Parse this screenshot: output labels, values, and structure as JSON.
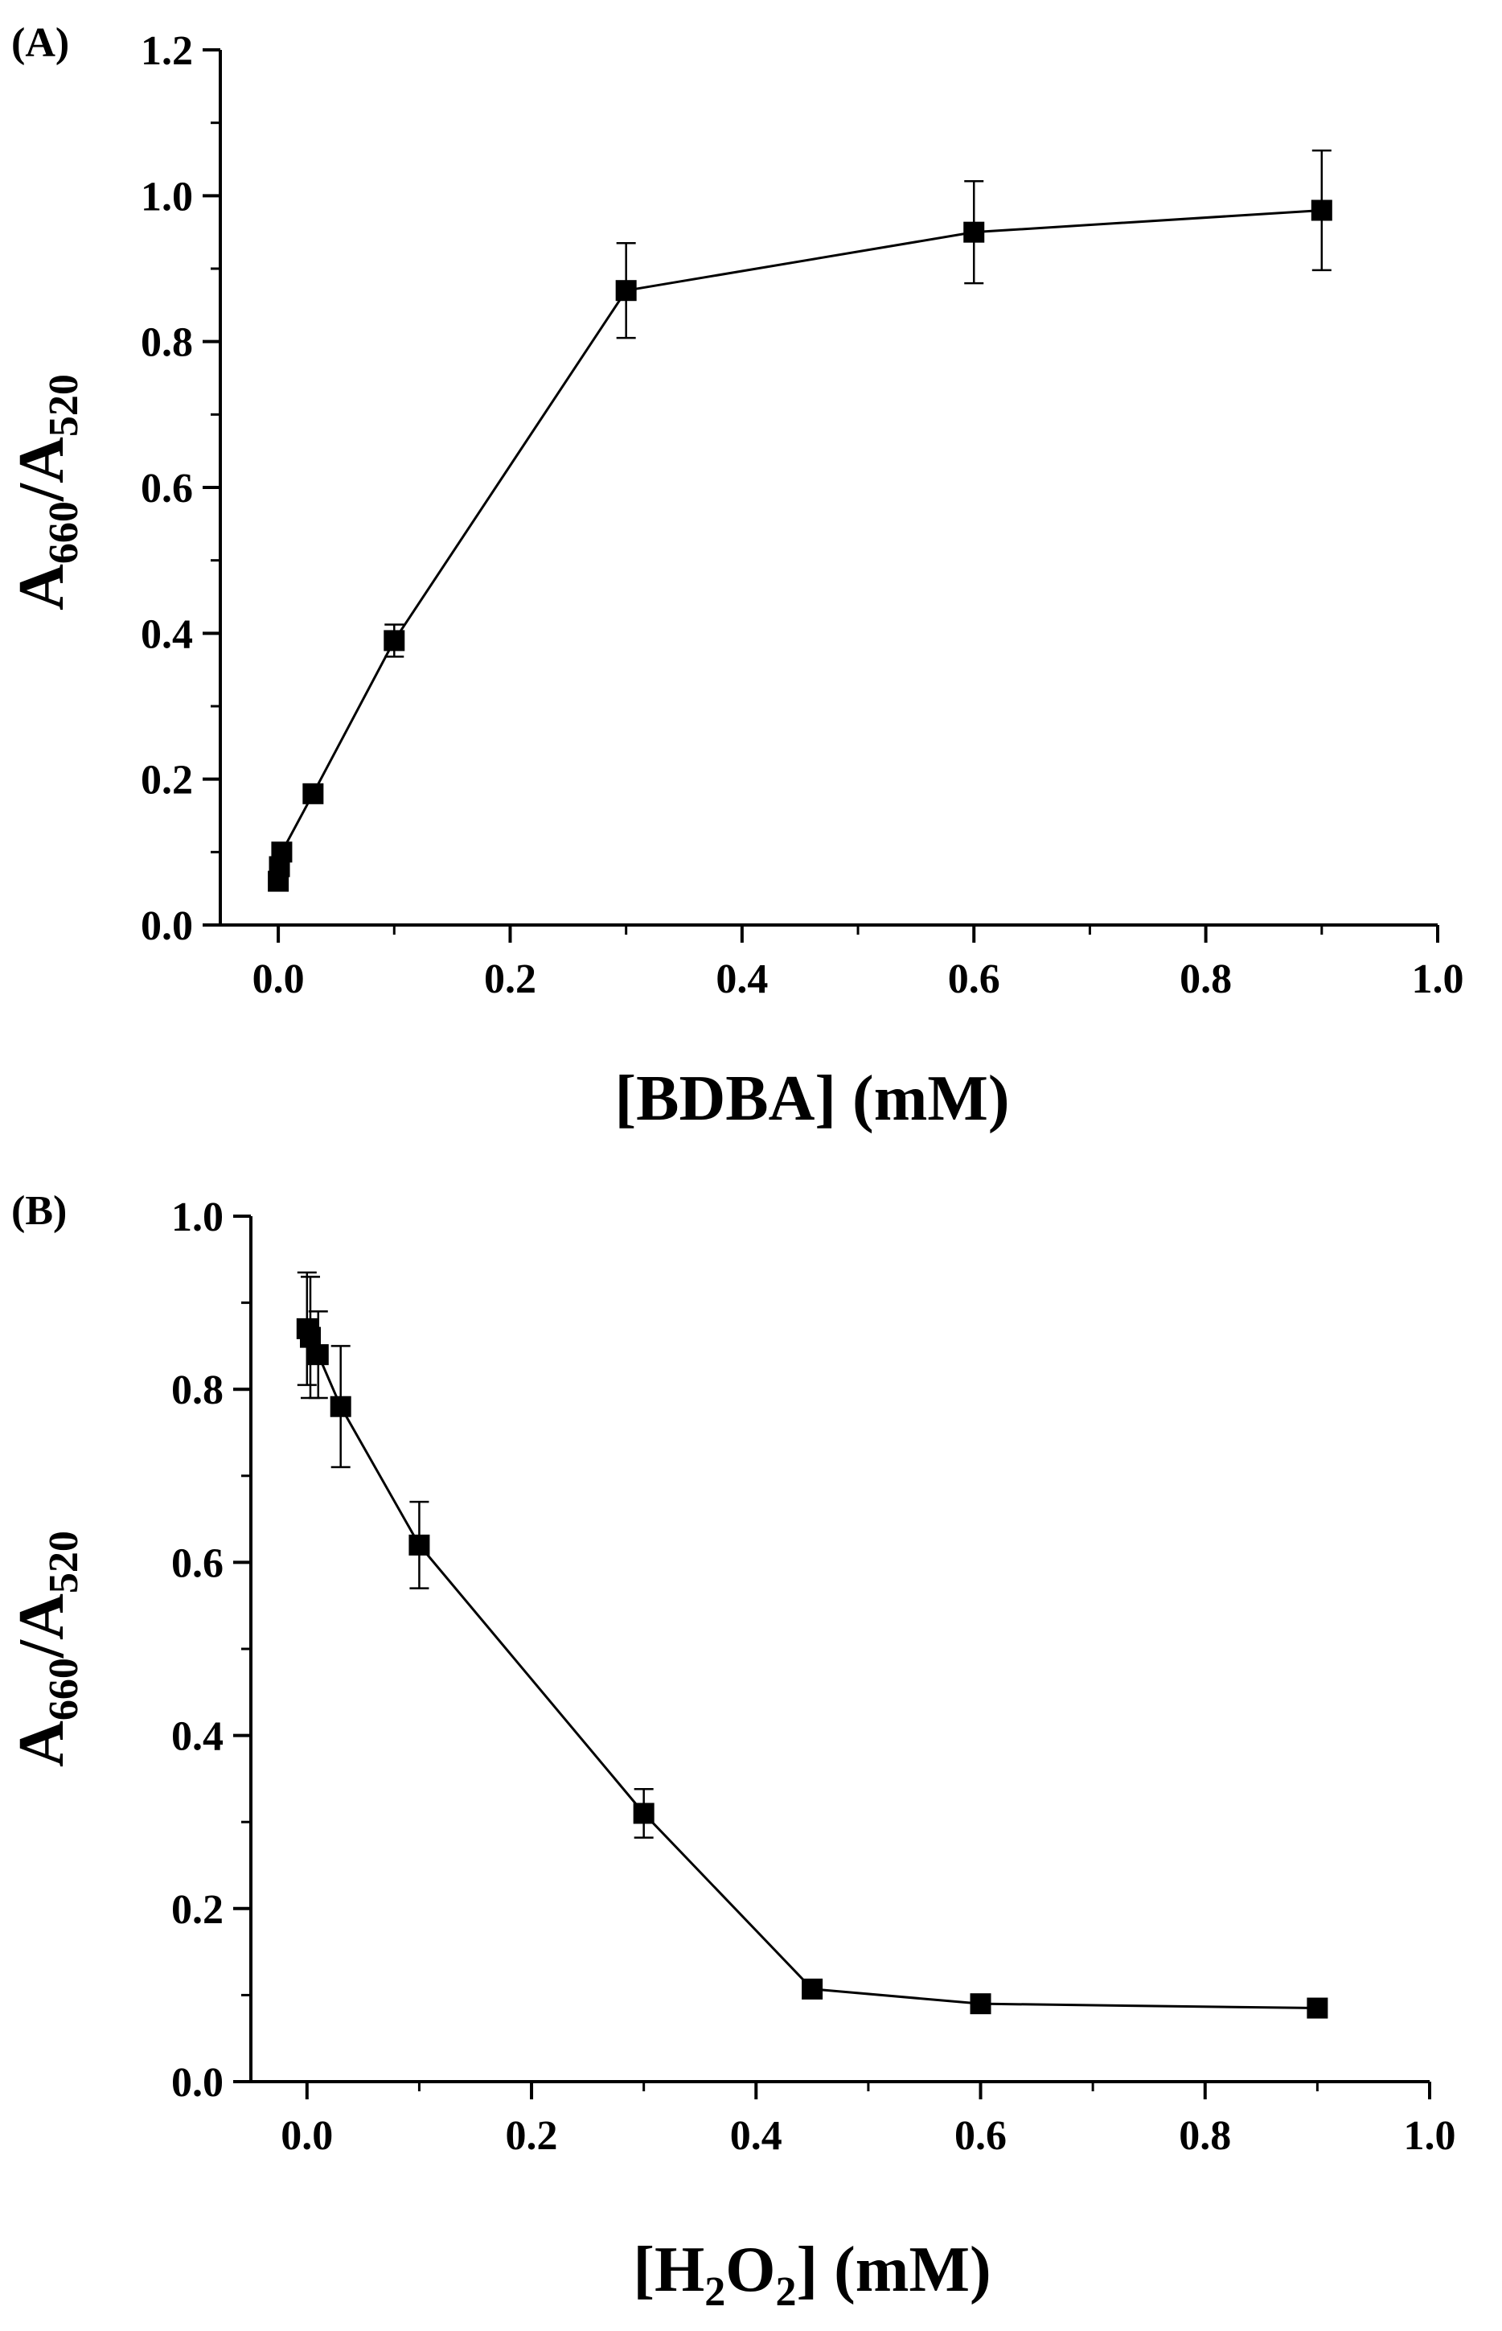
{
  "chart_data": [
    {
      "type": "line",
      "panel_label": "(A)",
      "title": "",
      "xlabel": "[BDBA] (mM)",
      "ylabel": {
        "main": "A",
        "sub1": "660",
        "slash": "/A",
        "sub2": "520"
      },
      "xlim": [
        -0.05,
        1.0
      ],
      "ylim": [
        0.0,
        1.2
      ],
      "x_ticks": [
        "0.0",
        "0.2",
        "0.4",
        "0.6",
        "0.8",
        "1.0"
      ],
      "y_ticks": [
        "0.0",
        "0.2",
        "0.4",
        "0.6",
        "0.8",
        "1.0",
        "1.2"
      ],
      "grid": false,
      "legend": "none",
      "marker": "square",
      "color": "#000000",
      "series": [
        {
          "x": [
            0,
            0.001,
            0.003,
            0.03,
            0.1,
            0.3,
            0.6,
            0.9
          ],
          "y": [
            0.06,
            0.08,
            0.1,
            0.18,
            0.39,
            0.87,
            0.95,
            0.98
          ],
          "error": [
            0.0,
            0.0,
            0.0,
            0.0,
            0.022,
            0.065,
            0.07,
            0.082
          ]
        }
      ]
    },
    {
      "type": "line",
      "panel_label": "(B)",
      "title": "",
      "xlabel": {
        "pre": "[H",
        "sub1": "2",
        "mid": "O",
        "sub2": "2",
        "post": "] (mM)"
      },
      "ylabel": {
        "main": "A",
        "sub1": "660",
        "slash": "/A",
        "sub2": "520"
      },
      "xlim": [
        -0.05,
        1.0
      ],
      "ylim": [
        0.0,
        1.0
      ],
      "x_ticks": [
        "0.0",
        "0.2",
        "0.4",
        "0.6",
        "0.8",
        "1.0"
      ],
      "y_ticks": [
        "0.0",
        "0.2",
        "0.4",
        "0.6",
        "0.8",
        "1.0"
      ],
      "grid": false,
      "legend": "none",
      "marker": "square",
      "color": "#000000",
      "series": [
        {
          "x": [
            0,
            0.003,
            0.01,
            0.03,
            0.1,
            0.3,
            0.45,
            0.6,
            0.9
          ],
          "y": [
            0.87,
            0.86,
            0.84,
            0.78,
            0.62,
            0.31,
            0.107,
            0.09,
            0.085
          ],
          "error": [
            0.065,
            0.07,
            0.05,
            0.07,
            0.05,
            0.028,
            0.0,
            0.0,
            0.0
          ]
        }
      ]
    }
  ]
}
